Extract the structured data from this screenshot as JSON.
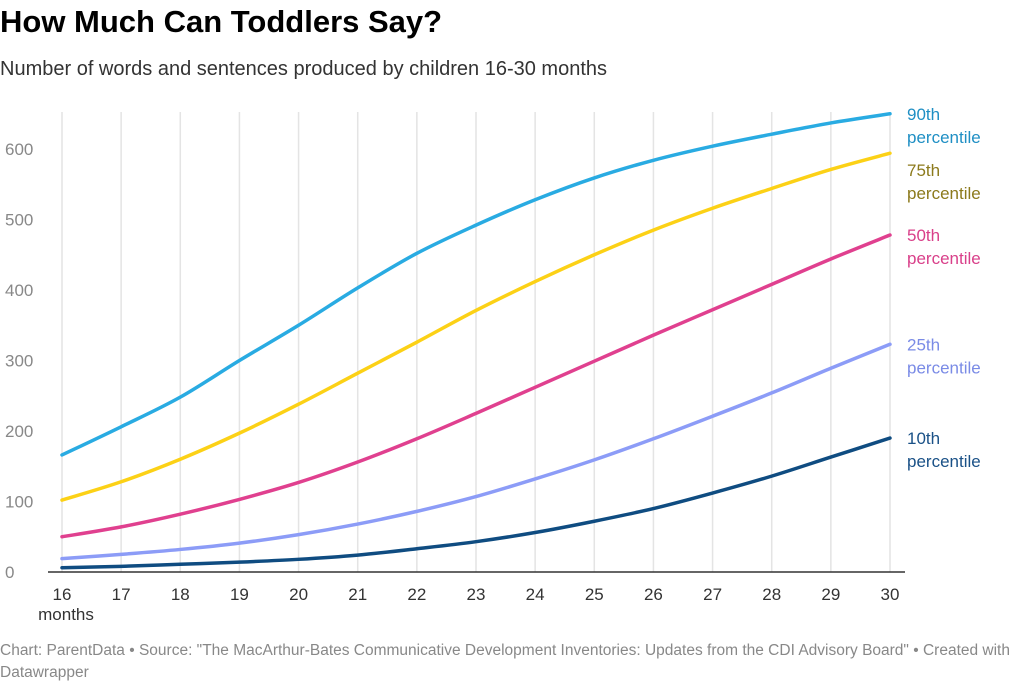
{
  "title": "How Much Can Toddlers Say?",
  "subtitle": "Number of words and sentences produced by children 16-30 months",
  "footer": "Chart: ParentData • Source: \"The MacArthur-Bates Communicative Development Inventories: Updates from the CDI Advisory Board\" • Created with Datawrapper",
  "chart_data": {
    "type": "line",
    "title": "How Much Can Toddlers Say?",
    "xlabel": "months",
    "ylabel": "",
    "x": [
      16,
      17,
      18,
      19,
      20,
      21,
      22,
      23,
      24,
      25,
      26,
      27,
      28,
      29,
      30
    ],
    "xlim": [
      16,
      30
    ],
    "ylim": [
      0,
      650
    ],
    "yticks": [
      0,
      100,
      200,
      300,
      400,
      500,
      600
    ],
    "x_unit_label": "months",
    "grid": "vertical",
    "legend": "direct labels at right",
    "series": [
      {
        "name": "90th",
        "label2": "percentile",
        "color": "#29abe2",
        "label_color": "#1f8fc4",
        "values": [
          166,
          206,
          248,
          300,
          350,
          403,
          452,
          492,
          528,
          559,
          584,
          604,
          621,
          637,
          650
        ]
      },
      {
        "name": "75th",
        "label2": "percentile",
        "color": "#fcd116",
        "label_color": "#8c7a1c",
        "values": [
          102,
          128,
          160,
          197,
          238,
          282,
          326,
          371,
          412,
          450,
          485,
          516,
          544,
          571,
          594
        ]
      },
      {
        "name": "50th",
        "label2": "percentile",
        "color": "#e0408f",
        "label_color": "#d9408a",
        "values": [
          50,
          64,
          82,
          103,
          127,
          156,
          189,
          225,
          262,
          299,
          336,
          372,
          408,
          444,
          478
        ]
      },
      {
        "name": "25th",
        "label2": "percentile",
        "color": "#8c9cf7",
        "label_color": "#7a8be6",
        "values": [
          19,
          25,
          32,
          41,
          53,
          68,
          86,
          107,
          132,
          159,
          189,
          221,
          254,
          289,
          323
        ]
      },
      {
        "name": "10th",
        "label2": "percentile",
        "color": "#0f4c81",
        "label_color": "#1a5187",
        "values": [
          6,
          8,
          11,
          14,
          18,
          24,
          33,
          43,
          56,
          72,
          90,
          112,
          136,
          163,
          190
        ]
      }
    ]
  }
}
